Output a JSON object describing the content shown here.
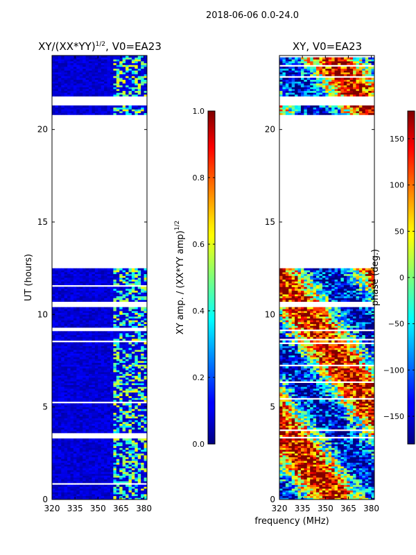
{
  "suptitle": "2018-06-06 0.0-24.0",
  "xlabel_shared": "frequency (MHz)",
  "chart_data": [
    {
      "type": "heatmap",
      "title_main": "XY/(XX*YY)",
      "title_sup": "1/2",
      "title_tail": ", V0=EA23",
      "xlabel": "",
      "ylabel": "UT (hours)",
      "xlim": [
        320,
        382
      ],
      "ylim": [
        0,
        24
      ],
      "xticks": [
        320,
        335,
        350,
        365,
        380
      ],
      "yticks": [
        0,
        5,
        10,
        15,
        20
      ],
      "empty_ut_ranges": [
        [
          12.5,
          20.8
        ],
        [
          10.4,
          10.65
        ],
        [
          21.35,
          21.8
        ],
        [
          3.3,
          3.45
        ]
      ],
      "colorbar": {
        "label_main": "XY amp. / (XX*YY amp)",
        "label_sup": "1/2",
        "range": [
          0.0,
          1.0
        ],
        "ticks": [
          "0.0",
          "0.2",
          "0.4",
          "0.6",
          "0.8",
          "1.0"
        ],
        "tick_values": [
          0.0,
          0.2,
          0.4,
          0.6,
          0.8,
          1.0
        ]
      },
      "colormap": "jet"
    },
    {
      "type": "heatmap",
      "title_main": "XY, V0=EA23",
      "title_sup": "",
      "title_tail": "",
      "xlabel": "frequency (MHz)",
      "ylabel": "",
      "xlim": [
        320,
        382
      ],
      "ylim": [
        0,
        24
      ],
      "xticks": [
        320,
        335,
        350,
        365,
        380
      ],
      "yticks": [
        0,
        5,
        10,
        15,
        20
      ],
      "empty_ut_ranges": [
        [
          12.5,
          20.8
        ],
        [
          10.4,
          10.65
        ],
        [
          21.35,
          21.8
        ],
        [
          3.3,
          3.45
        ]
      ],
      "colorbar": {
        "label_main": "phase (deg.)",
        "label_sup": "",
        "range": [
          -180,
          180
        ],
        "ticks": [
          "−150",
          "−100",
          "−50",
          "0",
          "50",
          "100",
          "150"
        ],
        "tick_values": [
          -150,
          -100,
          -50,
          0,
          50,
          100,
          150
        ]
      },
      "colormap": "jet"
    }
  ]
}
